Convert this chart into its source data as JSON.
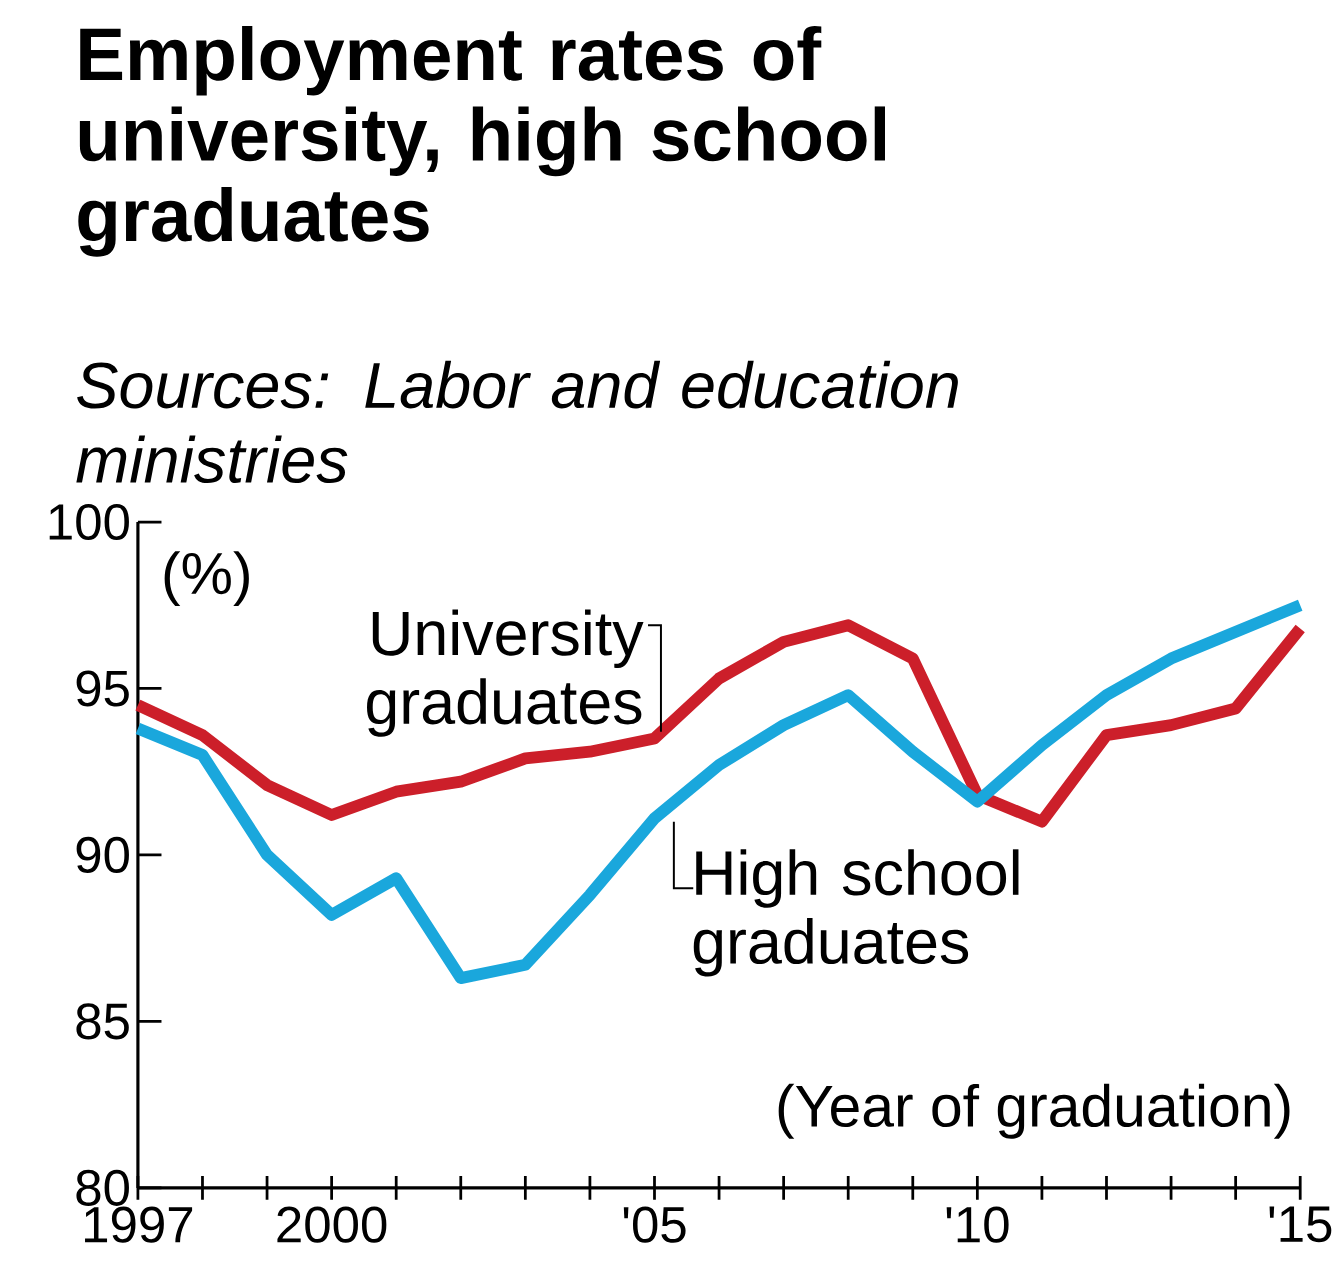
{
  "chart_data": {
    "type": "line",
    "title": "Employment rates of university, high school graduates",
    "annotations": [
      "Sources: Labor and education ministries"
    ],
    "ylabel": "(%)",
    "xlabel": "(Year of graduation)",
    "x": [
      1997,
      1998,
      1999,
      2000,
      2001,
      2002,
      2003,
      2004,
      2005,
      2006,
      2007,
      2008,
      2009,
      2010,
      2011,
      2012,
      2013,
      2014,
      2015
    ],
    "series": [
      {
        "name": "University graduates",
        "color": "#cc1f2a",
        "values": [
          94.5,
          93.6,
          92.1,
          91.2,
          91.9,
          92.2,
          92.9,
          93.1,
          93.5,
          95.3,
          96.4,
          96.9,
          95.9,
          91.8,
          91.0,
          93.6,
          93.9,
          94.4,
          96.8
        ]
      },
      {
        "name": "High school graduates",
        "color": "#1aa7dc",
        "values": [
          93.8,
          93.0,
          90.0,
          88.2,
          89.3,
          86.3,
          86.7,
          88.8,
          91.1,
          92.7,
          93.9,
          94.8,
          93.1,
          91.6,
          93.3,
          94.8,
          95.9,
          96.7,
          97.5
        ]
      }
    ],
    "xlim": [
      1997,
      2015
    ],
    "ylim": [
      80,
      100
    ],
    "xticks": [
      1997,
      {
        "value": 1998,
        "label": null
      },
      {
        "value": 1999,
        "label": null
      },
      2000,
      {
        "value": 2001,
        "label": null
      },
      {
        "value": 2002,
        "label": null
      },
      {
        "value": 2003,
        "label": null
      },
      {
        "value": 2004,
        "label": null
      },
      {
        "value": 2005,
        "label": "'05"
      },
      {
        "value": 2006,
        "label": null
      },
      {
        "value": 2007,
        "label": null
      },
      {
        "value": 2008,
        "label": null
      },
      {
        "value": 2009,
        "label": null
      },
      {
        "value": 2010,
        "label": "'10"
      },
      {
        "value": 2011,
        "label": null
      },
      {
        "value": 2012,
        "label": null
      },
      {
        "value": 2013,
        "label": null
      },
      {
        "value": 2014,
        "label": null
      },
      {
        "value": 2015,
        "label": "'15"
      }
    ],
    "yticks": [
      80,
      85,
      90,
      95,
      100
    ],
    "grid": false
  }
}
